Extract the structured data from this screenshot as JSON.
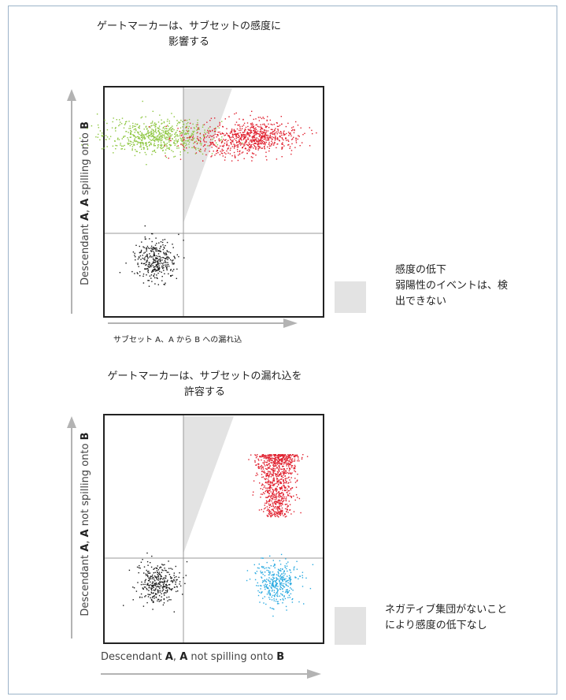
{
  "top": {
    "title_line1": "ゲートマーカーは、サブセットの感度に",
    "title_line2": "影響する",
    "ylabel_pre": "Descendant ",
    "ylabel_b1": "A",
    "ylabel_mid": ", ",
    "ylabel_b2": "A",
    "ylabel_post": " spilling onto ",
    "ylabel_b3": "B",
    "xlabel": "サブセット A、A から B への漏れ込",
    "note_line1": "感度の低下",
    "note_line2": "弱陽性のイベントは、検",
    "note_line3": "出できない"
  },
  "bottom": {
    "title_line1": "ゲートマーカーは、サブセットの漏れ込を",
    "title_line2": "許容する",
    "ylabel_pre": "Descendant ",
    "ylabel_b1": "A",
    "ylabel_mid": ", ",
    "ylabel_b2": "A",
    "ylabel_post": " not spilling onto ",
    "ylabel_b3": "B",
    "xlabel_pre": "Descendant ",
    "xlabel_b1": "A",
    "xlabel_mid": ", ",
    "xlabel_b2": "A",
    "xlabel_post": " not spilling onto ",
    "xlabel_b3": "B",
    "note_line1": "ネガティブ集団がないこと",
    "note_line2": "により感度の低下なし"
  },
  "colors": {
    "black_cluster": "#1a1a1a",
    "green_cluster": "#8dc63f",
    "red_cluster": "#e0202e",
    "blue_cluster": "#29a9e0",
    "wedge": "#e3e3e3",
    "axis_arrow": "#b3b3b3"
  },
  "chart_data": [
    {
      "type": "scatter",
      "title": "ゲートマーカーは、サブセットの感度に 影響する",
      "xlabel": "サブセット A、A から B への漏れ込",
      "ylabel": "Descendant A, A spilling onto B",
      "grid": false,
      "series": [
        {
          "color": "#1a1a1a",
          "center": [
            0.25,
            0.27
          ],
          "points": 300
        },
        {
          "color": "#8dc63f",
          "center": [
            0.22,
            0.81
          ],
          "points": 700
        },
        {
          "color": "#e0202e",
          "center": [
            0.68,
            0.81
          ],
          "points": 900
        }
      ]
    },
    {
      "type": "scatter",
      "title": "ゲートマーカーは、サブセットの漏れ込を 許容する",
      "xlabel": "Descendant A, A not spilling onto B",
      "ylabel": "Descendant A, A not spilling onto B",
      "grid": false,
      "series": [
        {
          "color": "#1a1a1a",
          "center": [
            0.25,
            0.22
          ],
          "points": 300
        },
        {
          "color": "#e0202e",
          "center": [
            0.74,
            0.6
          ],
          "points": 900
        },
        {
          "color": "#29a9e0",
          "center": [
            0.74,
            0.22
          ],
          "points": 350
        }
      ]
    }
  ]
}
